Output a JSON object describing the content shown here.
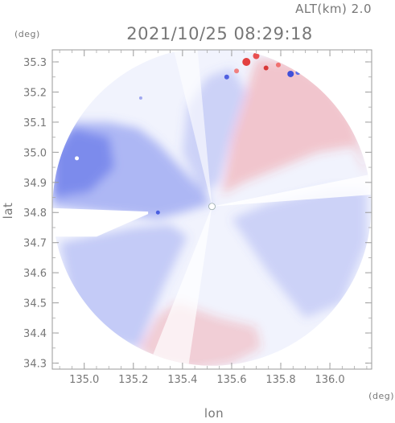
{
  "header": {
    "altitude_label": "ALT(km) 2.0",
    "datetime": "2021/10/25 08:29:18",
    "y_unit": "(deg)",
    "x_unit": "(deg)"
  },
  "chart_data": {
    "type": "heatmap",
    "title": "2021/10/25 08:29:18",
    "xlabel": "lon",
    "ylabel": "lat",
    "xlim": [
      134.87,
      136.17
    ],
    "ylim": [
      34.28,
      35.34
    ],
    "x_ticks": [
      "135.0",
      "135.2",
      "135.4",
      "135.6",
      "135.8",
      "136.0"
    ],
    "x_tick_values": [
      135.0,
      135.2,
      135.4,
      135.6,
      135.8,
      136.0
    ],
    "y_ticks": [
      "34.3",
      "34.4",
      "34.5",
      "34.6",
      "34.7",
      "34.8",
      "34.9",
      "35.0",
      "35.1",
      "35.2",
      "35.3"
    ],
    "y_tick_values": [
      34.3,
      34.4,
      34.5,
      34.6,
      34.7,
      34.8,
      34.9,
      35.0,
      35.1,
      35.2,
      35.3
    ],
    "radar_center": {
      "lon": 135.52,
      "lat": 34.82
    },
    "colors": {
      "toward": "#5b6ee8",
      "away": "#f2383c",
      "frame": "#999999",
      "text": "#777777"
    },
    "regions": [
      {
        "name": "west-sector-blue",
        "polarity": "toward",
        "points": [
          [
            134.87,
            34.82
          ],
          [
            134.87,
            34.99
          ],
          [
            134.95,
            35.1
          ],
          [
            135.1,
            35.1
          ],
          [
            135.22,
            35.08
          ],
          [
            135.3,
            35.03
          ],
          [
            135.38,
            34.96
          ],
          [
            135.47,
            34.88
          ],
          [
            135.52,
            34.83
          ],
          [
            135.4,
            34.8
          ],
          [
            135.3,
            34.78
          ],
          [
            134.87,
            34.82
          ]
        ],
        "intensity": 0.45
      },
      {
        "name": "west-core-blue",
        "polarity": "toward",
        "points": [
          [
            134.87,
            34.85
          ],
          [
            134.87,
            35.0
          ],
          [
            134.95,
            35.08
          ],
          [
            135.1,
            35.05
          ],
          [
            135.12,
            34.95
          ],
          [
            135.02,
            34.87
          ],
          [
            134.87,
            34.85
          ]
        ],
        "intensity": 0.6
      },
      {
        "name": "north-sector-blue",
        "polarity": "toward",
        "points": [
          [
            135.48,
            34.86
          ],
          [
            135.4,
            35.0
          ],
          [
            135.42,
            35.15
          ],
          [
            135.5,
            35.25
          ],
          [
            135.6,
            35.28
          ],
          [
            135.66,
            35.2
          ],
          [
            135.6,
            35.05
          ],
          [
            135.55,
            34.9
          ],
          [
            135.48,
            34.86
          ]
        ],
        "intensity": 0.25
      },
      {
        "name": "southwest-sector-blue",
        "polarity": "toward",
        "points": [
          [
            134.9,
            34.7
          ],
          [
            134.95,
            34.5
          ],
          [
            135.08,
            34.38
          ],
          [
            135.22,
            34.35
          ],
          [
            135.32,
            34.55
          ],
          [
            135.42,
            34.72
          ],
          [
            135.35,
            34.76
          ],
          [
            135.2,
            34.75
          ],
          [
            134.9,
            34.7
          ]
        ],
        "intensity": 0.3
      },
      {
        "name": "southeast-sector-blue",
        "polarity": "toward",
        "points": [
          [
            135.6,
            34.78
          ],
          [
            135.75,
            34.6
          ],
          [
            135.9,
            34.45
          ],
          [
            136.05,
            34.5
          ],
          [
            136.15,
            34.7
          ],
          [
            136.15,
            34.88
          ],
          [
            136.0,
            34.88
          ],
          [
            135.75,
            34.83
          ],
          [
            135.6,
            34.78
          ]
        ],
        "intensity": 0.25
      },
      {
        "name": "northeast-sector-red",
        "polarity": "away",
        "points": [
          [
            135.56,
            34.86
          ],
          [
            135.65,
            34.9
          ],
          [
            135.8,
            34.95
          ],
          [
            135.95,
            35.0
          ],
          [
            136.1,
            35.02
          ],
          [
            136.15,
            34.92
          ],
          [
            136.1,
            35.1
          ],
          [
            136.0,
            35.22
          ],
          [
            135.85,
            35.3
          ],
          [
            135.7,
            35.31
          ],
          [
            135.66,
            35.2
          ],
          [
            135.6,
            35.05
          ],
          [
            135.56,
            34.86
          ]
        ],
        "intensity": 0.25
      },
      {
        "name": "south-sector-red",
        "polarity": "away",
        "points": [
          [
            135.22,
            34.35
          ],
          [
            135.3,
            34.46
          ],
          [
            135.38,
            34.5
          ],
          [
            135.55,
            34.45
          ],
          [
            135.7,
            34.42
          ],
          [
            135.72,
            34.35
          ],
          [
            135.6,
            34.3
          ],
          [
            135.45,
            34.28
          ],
          [
            135.3,
            34.3
          ],
          [
            135.22,
            34.35
          ]
        ],
        "intensity": 0.2
      }
    ]
  }
}
